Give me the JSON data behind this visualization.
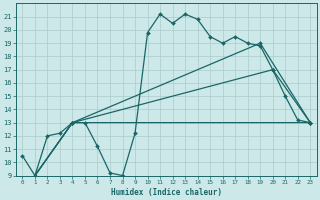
{
  "title": "",
  "xlabel": "Humidex (Indice chaleur)",
  "bg_color": "#cce8e8",
  "line_color": "#1a6666",
  "grid_color": "#aacccc",
  "xlim": [
    -0.5,
    23.5
  ],
  "ylim": [
    9,
    22
  ],
  "xticks": [
    0,
    1,
    2,
    3,
    4,
    5,
    6,
    7,
    8,
    9,
    10,
    11,
    12,
    13,
    14,
    15,
    16,
    17,
    18,
    19,
    20,
    21,
    22,
    23
  ],
  "yticks": [
    9,
    10,
    11,
    12,
    13,
    14,
    15,
    16,
    17,
    18,
    19,
    20,
    21
  ],
  "line1_x": [
    0,
    1,
    2,
    3,
    4,
    5,
    6,
    7,
    8,
    9,
    10,
    11,
    12,
    13,
    14,
    15,
    16,
    17,
    18,
    19,
    20,
    21,
    22,
    23
  ],
  "line1_y": [
    10.5,
    9.0,
    12.0,
    12.2,
    13.0,
    13.0,
    11.2,
    9.2,
    9.0,
    12.2,
    19.8,
    21.2,
    20.5,
    21.2,
    20.8,
    19.5,
    19.0,
    19.5,
    19.0,
    18.8,
    17.0,
    15.0,
    13.2,
    13.0
  ],
  "line2_x": [
    1,
    4,
    23
  ],
  "line2_y": [
    9.0,
    13.0,
    13.0
  ],
  "line3_x": [
    1,
    4,
    20,
    23
  ],
  "line3_y": [
    9.0,
    13.0,
    17.0,
    13.0
  ],
  "line4_x": [
    1,
    4,
    19,
    23
  ],
  "line4_y": [
    9.0,
    13.0,
    19.0,
    13.0
  ]
}
